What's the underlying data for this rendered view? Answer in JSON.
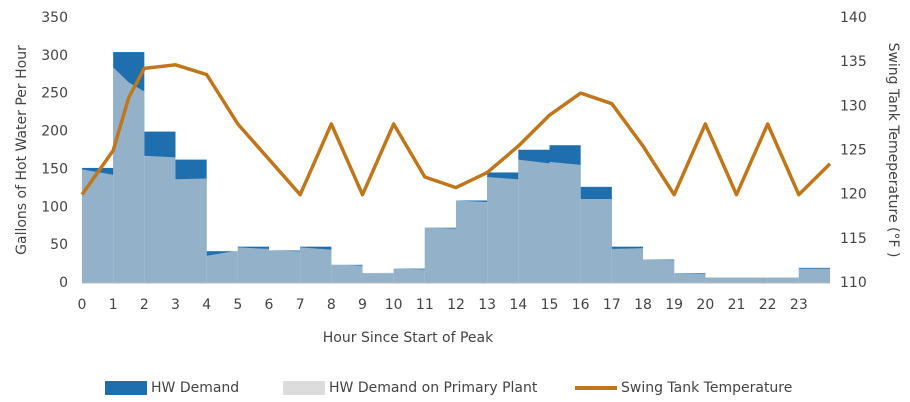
{
  "chart_data": {
    "type": "step-area-line",
    "x_label": "Hour Since Start of Peak",
    "y_label": "Gallons of Hot Water Per Hour",
    "y2_label": "Swing Tank Temeperature (°F )",
    "xlim": [
      0,
      24
    ],
    "xticks": [
      0,
      1,
      2,
      3,
      4,
      5,
      6,
      7,
      8,
      9,
      10,
      11,
      12,
      13,
      14,
      15,
      16,
      17,
      18,
      19,
      20,
      21,
      22,
      23
    ],
    "ylim": [
      0,
      350
    ],
    "yticks": [
      0,
      50,
      100,
      150,
      200,
      250,
      300,
      350
    ],
    "y2lim": [
      110,
      140
    ],
    "y2ticks": [
      110,
      115,
      120,
      125,
      130,
      135,
      140
    ],
    "grid": false,
    "legend": "bottom",
    "series": [
      {
        "name": "HW Demand",
        "kind": "step",
        "color": "#1f6fae",
        "x": [
          0,
          1,
          2,
          3,
          4,
          5,
          6,
          7,
          8,
          9,
          10,
          11,
          12,
          13,
          14,
          15,
          16,
          17,
          18,
          19,
          20,
          21,
          22,
          23
        ],
        "values": [
          152,
          305,
          200,
          163,
          42,
          48,
          43,
          48,
          24,
          13,
          19,
          73,
          109,
          146,
          176,
          182,
          127,
          48,
          31,
          13,
          7,
          7,
          7,
          20
        ]
      },
      {
        "name": "HW Demand on Primary Plant",
        "kind": "area",
        "color": "#dcdcdc",
        "x": [
          0,
          1,
          1,
          1.5,
          2,
          2,
          3,
          3,
          4,
          4,
          5,
          5,
          6,
          6,
          7,
          7,
          8,
          8,
          9,
          9,
          10,
          10,
          11,
          11,
          12,
          12,
          13,
          13,
          14,
          14,
          15,
          15,
          16,
          16,
          17,
          17,
          18,
          18,
          19,
          19,
          20,
          20,
          23,
          23,
          24
        ],
        "values": [
          150,
          143,
          285,
          265,
          253,
          168,
          166,
          137,
          138,
          36,
          43,
          47,
          45,
          43,
          42,
          47,
          44,
          25,
          23,
          13,
          14,
          19,
          18,
          73,
          72,
          109,
          107,
          140,
          137,
          163,
          158,
          160,
          156,
          111,
          111,
          45,
          46,
          31,
          30,
          13,
          12,
          7,
          7,
          19,
          19
        ]
      },
      {
        "name": "Swing Tank Temperature",
        "kind": "line",
        "axis": "y2",
        "color": "#c0761b",
        "x": [
          0,
          1,
          1.5,
          2,
          3,
          4,
          5,
          6,
          7,
          8,
          9,
          10,
          11,
          12,
          13,
          14,
          15,
          16,
          17,
          18,
          19,
          20,
          21,
          22,
          23,
          24
        ],
        "values": [
          120,
          125,
          131,
          134.3,
          134.7,
          133.6,
          128,
          124,
          120,
          128,
          120,
          128,
          122,
          120.8,
          122.5,
          125.5,
          129,
          131.5,
          130.3,
          125.5,
          120,
          128,
          120,
          128,
          120,
          123.5
        ]
      }
    ]
  }
}
